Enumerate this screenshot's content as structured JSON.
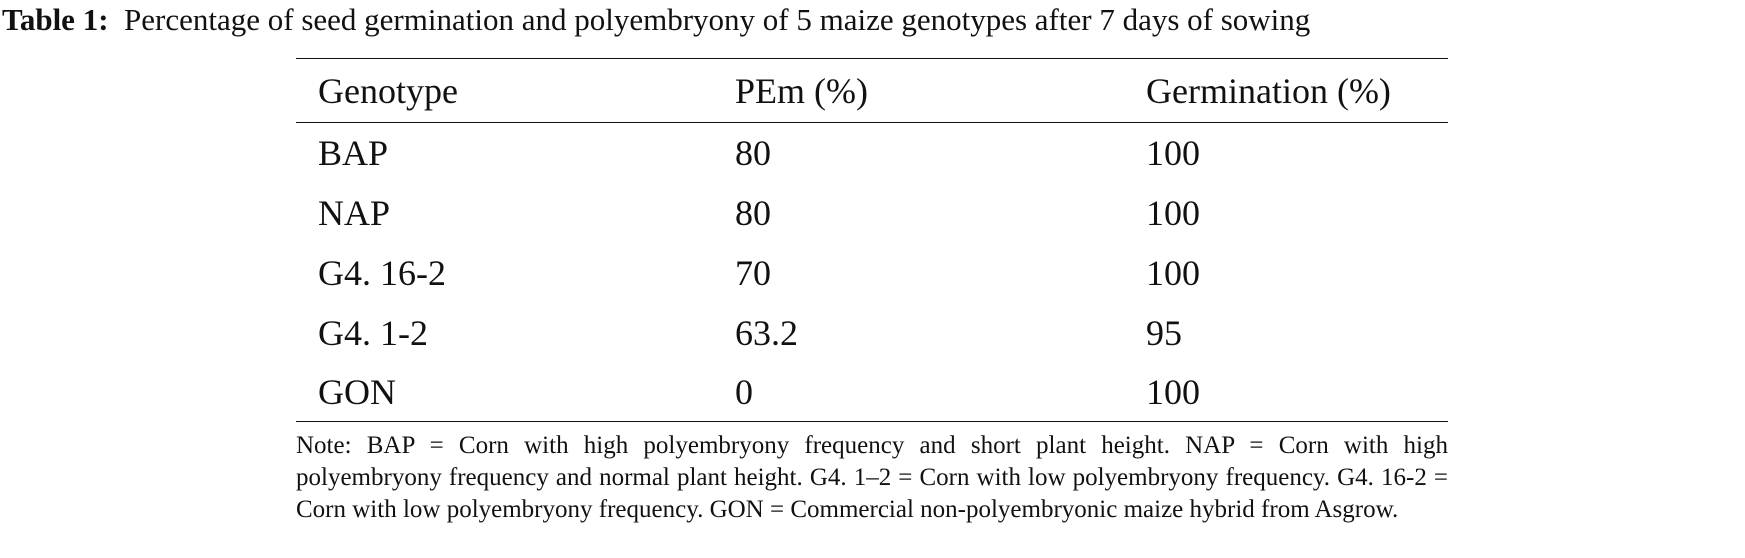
{
  "caption": {
    "label": "Table 1:",
    "text": "Percentage of seed germination and polyembryony of 5 maize genotypes after 7 days of sowing"
  },
  "table": {
    "headers": [
      "Genotype",
      "PEm (%)",
      "Germination (%)"
    ],
    "rows": [
      [
        "BAP",
        "80",
        "100"
      ],
      [
        "NAP",
        "80",
        "100"
      ],
      [
        "G4. 16-2",
        "70",
        "100"
      ],
      [
        "G4. 1-2",
        "63.2",
        "95"
      ],
      [
        "GON",
        "0",
        "100"
      ]
    ]
  },
  "note": "Note: BAP = Corn with high polyembryony frequency and short plant height. NAP = Corn with high polyembryony frequency and normal plant height. G4. 1–2 = Corn with low polyembryony frequency. G4. 16-2 = Corn with low polyembryony frequency. GON = Commercial non-polyembryonic maize hybrid from Asgrow."
}
